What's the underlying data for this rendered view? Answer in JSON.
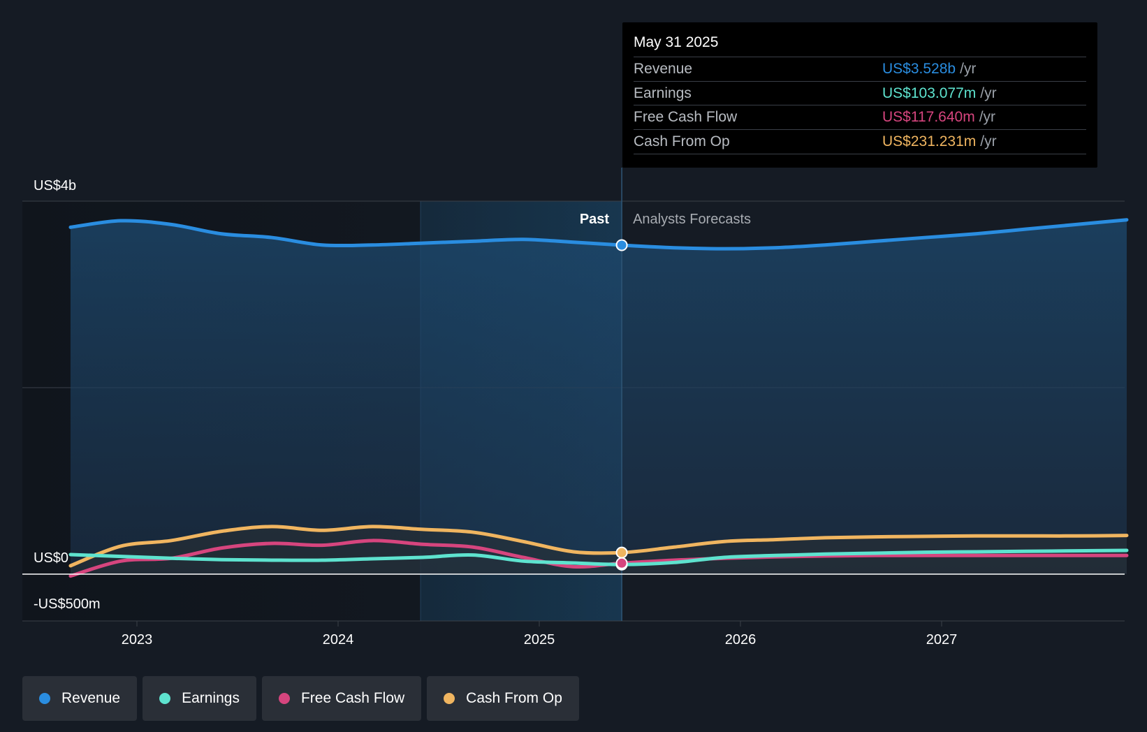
{
  "colors": {
    "background": "#151b24",
    "revenue": "#2a8de0",
    "earnings": "#5ee3cf",
    "free_cash_flow": "#d6457e",
    "cash_from_op": "#f0b560"
  },
  "tooltip": {
    "date": "May 31 2025",
    "rows": [
      {
        "label": "Revenue",
        "value": "US$3.528b",
        "unit": "/yr",
        "color": "#2a8de0"
      },
      {
        "label": "Earnings",
        "value": "US$103.077m",
        "unit": "/yr",
        "color": "#5ee3cf"
      },
      {
        "label": "Free Cash Flow",
        "value": "US$117.640m",
        "unit": "/yr",
        "color": "#d6457e"
      },
      {
        "label": "Cash From Op",
        "value": "US$231.231m",
        "unit": "/yr",
        "color": "#f0b560"
      }
    ]
  },
  "legend": [
    {
      "label": "Revenue",
      "color": "#2a8de0"
    },
    {
      "label": "Earnings",
      "color": "#5ee3cf"
    },
    {
      "label": "Free Cash Flow",
      "color": "#d6457e"
    },
    {
      "label": "Cash From Op",
      "color": "#f0b560"
    }
  ],
  "chart_data": {
    "type": "line",
    "y_axis_labels": [
      "US$4b",
      "US$0",
      "-US$500m"
    ],
    "x_ticks": [
      "2023",
      "2024",
      "2025",
      "2026",
      "2027"
    ],
    "ylim": [
      -500,
      4000
    ],
    "y_unit": "US$m",
    "past_label": "Past",
    "forecast_label": "Analysts Forecasts",
    "divider_date": 2025.41,
    "highlight_start": 2024.41,
    "grid": true,
    "legend_position": "bottom-left",
    "series": [
      {
        "name": "Revenue",
        "color": "#2a8de0",
        "x": [
          2022.67,
          2022.92,
          2023.17,
          2023.42,
          2023.67,
          2023.92,
          2024.17,
          2024.42,
          2024.67,
          2024.92,
          2025.17,
          2025.41,
          2025.67,
          2025.92,
          2026.17,
          2026.42,
          2026.67,
          2026.92,
          2027.17,
          2027.42,
          2027.67,
          2027.92
        ],
        "y": [
          3720,
          3790,
          3750,
          3650,
          3610,
          3530,
          3530,
          3550,
          3570,
          3590,
          3560,
          3528,
          3500,
          3490,
          3500,
          3530,
          3570,
          3610,
          3650,
          3700,
          3750,
          3800
        ]
      },
      {
        "name": "Earnings",
        "color": "#5ee3cf",
        "x": [
          2022.67,
          2022.92,
          2023.17,
          2023.42,
          2023.67,
          2023.92,
          2024.17,
          2024.42,
          2024.67,
          2024.92,
          2025.17,
          2025.41,
          2025.67,
          2025.92,
          2026.17,
          2026.42,
          2026.67,
          2026.92,
          2027.17,
          2027.42,
          2027.67,
          2027.92
        ],
        "y": [
          210,
          190,
          170,
          155,
          150,
          150,
          165,
          180,
          205,
          140,
          120,
          103,
          125,
          180,
          200,
          215,
          225,
          235,
          240,
          245,
          250,
          255
        ]
      },
      {
        "name": "Free Cash Flow",
        "color": "#d6457e",
        "x": [
          2022.67,
          2022.92,
          2023.17,
          2023.42,
          2023.67,
          2023.92,
          2024.17,
          2024.42,
          2024.67,
          2024.92,
          2025.17,
          2025.41,
          2025.67,
          2025.92,
          2026.17,
          2026.42,
          2026.67,
          2026.92,
          2027.17,
          2027.42,
          2027.67,
          2027.92
        ],
        "y": [
          -20,
          140,
          170,
          280,
          330,
          310,
          360,
          320,
          290,
          180,
          80,
          118,
          150,
          170,
          185,
          195,
          200,
          200,
          200,
          200,
          200,
          200
        ]
      },
      {
        "name": "Cash From Op",
        "color": "#f0b560",
        "x": [
          2022.67,
          2022.92,
          2023.17,
          2023.42,
          2023.67,
          2023.92,
          2024.17,
          2024.42,
          2024.67,
          2024.92,
          2025.17,
          2025.41,
          2025.67,
          2025.92,
          2026.17,
          2026.42,
          2026.67,
          2026.92,
          2027.17,
          2027.42,
          2027.67,
          2027.92
        ],
        "y": [
          90,
          300,
          360,
          460,
          510,
          470,
          510,
          480,
          450,
          350,
          240,
          231,
          290,
          350,
          370,
          390,
          400,
          405,
          410,
          410,
          410,
          415
        ]
      }
    ]
  }
}
